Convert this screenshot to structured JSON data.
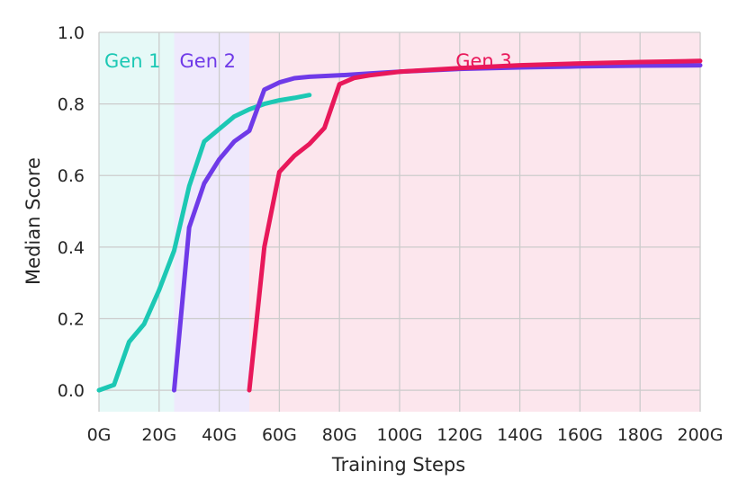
{
  "chart_data": {
    "type": "line",
    "title": "",
    "xlabel": "Training Steps",
    "ylabel": "Median Score",
    "xlim": [
      0,
      200
    ],
    "ylim": [
      -0.06,
      1.0
    ],
    "x_unit": "G",
    "x_ticks": [
      0,
      20,
      40,
      60,
      80,
      100,
      120,
      140,
      160,
      180,
      200
    ],
    "x_tick_labels": [
      "0G",
      "20G",
      "40G",
      "60G",
      "80G",
      "100G",
      "120G",
      "140G",
      "160G",
      "180G",
      "200G"
    ],
    "y_ticks": [
      0.0,
      0.2,
      0.4,
      0.6,
      0.8,
      1.0
    ],
    "y_tick_labels": [
      "0.0",
      "0.2",
      "0.4",
      "0.6",
      "0.8",
      "1.0"
    ],
    "grid": true,
    "legend": "none",
    "regions": [
      {
        "label": "Gen 1",
        "x0": 0,
        "x1": 25,
        "color": "#1cc8b4"
      },
      {
        "label": "Gen 2",
        "x0": 25,
        "x1": 50,
        "color": "#6f3ae8"
      },
      {
        "label": "Gen 3",
        "x0": 50,
        "x1": 200,
        "color": "#e8185a"
      }
    ],
    "series": [
      {
        "color": "#1cc8b4",
        "x": [
          0,
          5,
          10,
          15,
          20,
          25,
          30,
          35,
          40,
          45,
          50,
          55,
          60,
          65,
          70
        ],
        "y": [
          0.0,
          0.015,
          0.135,
          0.185,
          0.28,
          0.39,
          0.57,
          0.695,
          0.73,
          0.765,
          0.785,
          0.8,
          0.81,
          0.817,
          0.825
        ]
      },
      {
        "color": "#6f3ae8",
        "x": [
          25,
          30,
          35,
          40,
          45,
          50,
          55,
          60,
          65,
          70,
          80,
          90,
          100,
          120,
          140,
          160,
          180,
          200
        ],
        "y": [
          0.0,
          0.455,
          0.578,
          0.645,
          0.695,
          0.725,
          0.84,
          0.86,
          0.872,
          0.876,
          0.88,
          0.885,
          0.89,
          0.898,
          0.902,
          0.905,
          0.907,
          0.908
        ]
      },
      {
        "color": "#e8185a",
        "x": [
          50,
          55,
          60,
          65,
          70,
          75,
          80,
          85,
          90,
          100,
          120,
          140,
          160,
          180,
          200
        ],
        "y": [
          0.0,
          0.4,
          0.61,
          0.655,
          0.688,
          0.733,
          0.855,
          0.873,
          0.88,
          0.89,
          0.9,
          0.908,
          0.913,
          0.917,
          0.92
        ]
      }
    ]
  }
}
